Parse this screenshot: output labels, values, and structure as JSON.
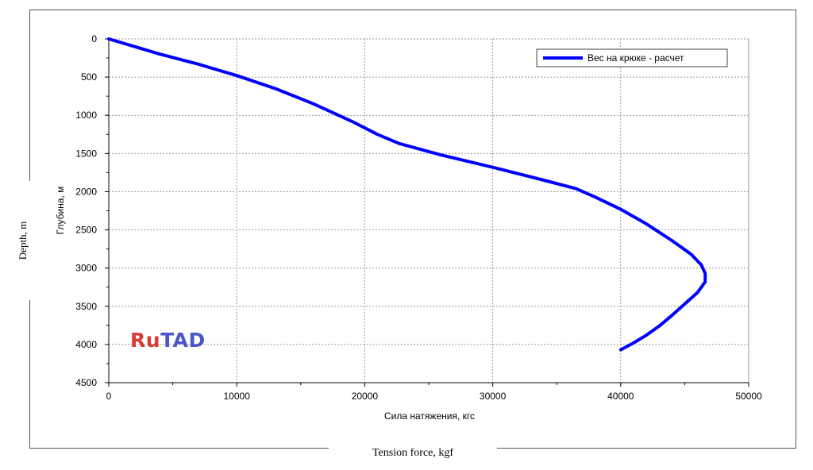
{
  "chart_data": {
    "type": "line",
    "xlabel": "Сила натяжения, кгс",
    "ylabel": "Глубина, м",
    "xlim": [
      0,
      50000
    ],
    "ylim": [
      4500,
      0
    ],
    "y_inverted": true,
    "x_ticks": [
      "0",
      "10000",
      "20000",
      "30000",
      "40000",
      "50000"
    ],
    "y_ticks": [
      "0",
      "500",
      "1000",
      "1500",
      "2000",
      "2500",
      "3000",
      "3500",
      "4000",
      "4500"
    ],
    "grid": true,
    "legend_position": "top-right",
    "series": [
      {
        "name": "Вес на крюке - расчет",
        "color": "#0000ff",
        "points": [
          [
            0,
            0
          ],
          [
            2000,
            100
          ],
          [
            4000,
            200
          ],
          [
            7000,
            330
          ],
          [
            10000,
            480
          ],
          [
            13000,
            650
          ],
          [
            16000,
            850
          ],
          [
            19000,
            1080
          ],
          [
            21000,
            1250
          ],
          [
            22700,
            1370
          ],
          [
            26000,
            1520
          ],
          [
            30000,
            1680
          ],
          [
            34000,
            1850
          ],
          [
            36500,
            1960
          ],
          [
            38000,
            2070
          ],
          [
            40000,
            2230
          ],
          [
            42000,
            2420
          ],
          [
            44000,
            2640
          ],
          [
            45500,
            2820
          ],
          [
            46300,
            2960
          ],
          [
            46600,
            3070
          ],
          [
            46600,
            3180
          ],
          [
            46000,
            3320
          ],
          [
            45000,
            3470
          ],
          [
            44000,
            3620
          ],
          [
            43000,
            3760
          ],
          [
            42000,
            3880
          ],
          [
            41000,
            3980
          ],
          [
            40000,
            4070
          ]
        ]
      }
    ]
  },
  "overlay": {
    "y_axis_caption": "Depth, m",
    "x_axis_caption": "Tension force, kgf"
  },
  "logo": {
    "part1": "Ru",
    "part2": "TAD"
  },
  "colors": {
    "series": "#0000ff",
    "grid": "#999999",
    "logo_red": "#d93a35",
    "logo_blue": "#4b57c9"
  }
}
